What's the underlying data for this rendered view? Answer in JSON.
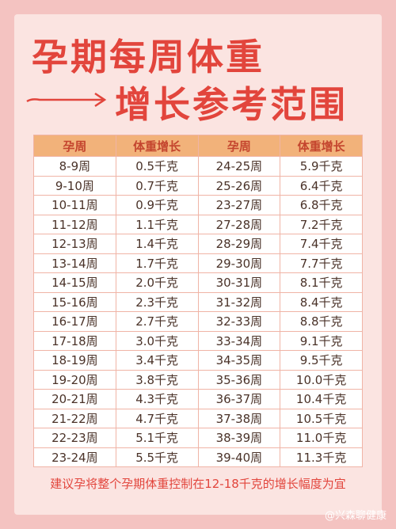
{
  "header": {
    "title_line1": "孕期每周体重",
    "title_line2": "增长参考范围"
  },
  "table": {
    "columns": [
      "孕周",
      "体重增长",
      "孕周",
      "体重增长"
    ],
    "rows": [
      [
        "8-9周",
        "0.5千克",
        "24-25周",
        "5.9千克"
      ],
      [
        "9-10周",
        "0.7千克",
        "25-26周",
        "6.4千克"
      ],
      [
        "10-11周",
        "0.9千克",
        "23-27周",
        "6.8千克"
      ],
      [
        "11-12周",
        "1.1千克",
        "27-28周",
        "7.2千克"
      ],
      [
        "12-13周",
        "1.4千克",
        "28-29周",
        "7.4千克"
      ],
      [
        "13-14周",
        "1.7千克",
        "29-30周",
        "7.7千克"
      ],
      [
        "14-15周",
        "2.0千克",
        "30-31周",
        "8.1千克"
      ],
      [
        "15-16周",
        "2.3千克",
        "31-32周",
        "8.4千克"
      ],
      [
        "16-17周",
        "2.7千克",
        "32-33周",
        "8.8千克"
      ],
      [
        "17-18周",
        "3.0千克",
        "33-34周",
        "9.1千克"
      ],
      [
        "18-19周",
        "3.4千克",
        "34-35周",
        "9.5千克"
      ],
      [
        "19-20周",
        "3.8千克",
        "35-36周",
        "10.0千克"
      ],
      [
        "20-21周",
        "4.3千克",
        "36-37周",
        "10.4千克"
      ],
      [
        "21-22周",
        "4.7千克",
        "37-38周",
        "10.5千克"
      ],
      [
        "22-23周",
        "5.1千克",
        "38-39周",
        "11.0千克"
      ],
      [
        "23-24周",
        "5.5千克",
        "39-40周",
        "11.3千克"
      ]
    ]
  },
  "footer": {
    "note": "建议孕将整个孕期体重控制在12-18千克的增长幅度为宜",
    "watermark": "@兴森聊健康"
  }
}
